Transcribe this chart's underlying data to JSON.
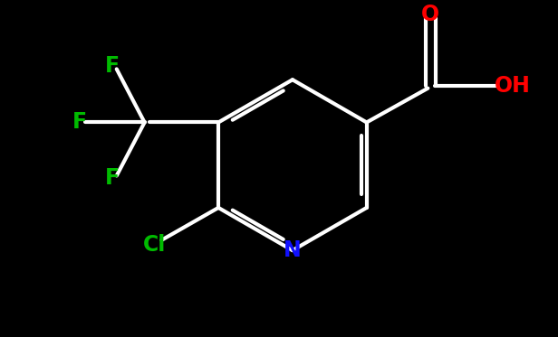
{
  "background_color": "#000000",
  "bond_color": "#ffffff",
  "atom_colors": {
    "F": "#00bb00",
    "Cl": "#00bb00",
    "N": "#1010ff",
    "O": "#ff0000",
    "C": "#ffffff",
    "H": "#ffffff"
  },
  "figsize": [
    6.16,
    3.73
  ],
  "dpi": 100
}
